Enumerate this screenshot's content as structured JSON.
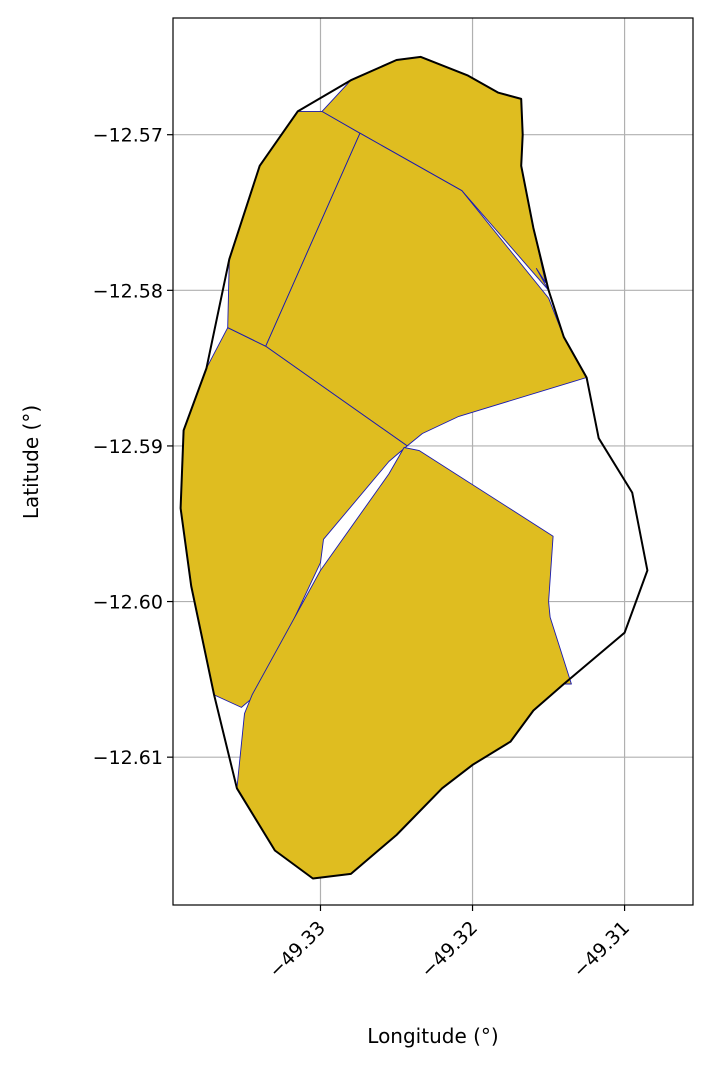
{
  "chart_data": {
    "type": "map",
    "title": "",
    "xlabel": "Longitude (°)",
    "ylabel": "Latitude (°)",
    "xlim": [
      -49.3397,
      -49.3055
    ],
    "ylim": [
      -12.6195,
      -12.5625
    ],
    "grid": true,
    "x_ticks": [
      {
        "value": -49.33,
        "label": "−49.33"
      },
      {
        "value": -49.32,
        "label": "−49.32"
      },
      {
        "value": -49.31,
        "label": "−49.31"
      }
    ],
    "y_ticks": [
      {
        "value": -12.57,
        "label": "−12.57"
      },
      {
        "value": -12.58,
        "label": "−12.58"
      },
      {
        "value": -12.59,
        "label": "−12.59"
      },
      {
        "value": -12.6,
        "label": "−12.60"
      },
      {
        "value": -12.61,
        "label": "−12.61"
      }
    ],
    "colors": {
      "parcel_fill": "#DFBD20",
      "parcel_edge": "#1A1AB0",
      "outline": "#000000",
      "grid": "#B0B0B0"
    },
    "outline": [
      [
        -49.3234,
        -12.565
      ],
      [
        -49.3203,
        -12.5662
      ],
      [
        -49.3183,
        -12.5673
      ],
      [
        -49.3168,
        -12.5677
      ],
      [
        -49.3167,
        -12.57
      ],
      [
        -49.3168,
        -12.572
      ],
      [
        -49.316,
        -12.576
      ],
      [
        -49.315,
        -12.58
      ],
      [
        -49.314,
        -12.583
      ],
      [
        -49.3125,
        -12.5856
      ],
      [
        -49.3117,
        -12.5895
      ],
      [
        -49.3095,
        -12.593
      ],
      [
        -49.3085,
        -12.598
      ],
      [
        -49.31,
        -12.602
      ],
      [
        -49.314,
        -12.6053
      ],
      [
        -49.316,
        -12.607
      ],
      [
        -49.3175,
        -12.609
      ],
      [
        -49.32,
        -12.6105
      ],
      [
        -49.322,
        -12.612
      ],
      [
        -49.325,
        -12.615
      ],
      [
        -49.328,
        -12.6175
      ],
      [
        -49.3305,
        -12.6178
      ],
      [
        -49.333,
        -12.616
      ],
      [
        -49.3355,
        -12.612
      ],
      [
        -49.337,
        -12.606
      ],
      [
        -49.3385,
        -12.599
      ],
      [
        -49.3392,
        -12.594
      ],
      [
        -49.339,
        -12.589
      ],
      [
        -49.3375,
        -12.585
      ],
      [
        -49.336,
        -12.578
      ],
      [
        -49.334,
        -12.572
      ],
      [
        -49.3315,
        -12.5685
      ],
      [
        -49.328,
        -12.5665
      ],
      [
        -49.325,
        -12.5652
      ]
    ],
    "parcels": [
      {
        "points": [
          [
            -49.3299,
            -12.5685
          ],
          [
            -49.3274,
            -12.5699
          ],
          [
            -49.3336,
            -12.5836
          ],
          [
            -49.3361,
            -12.5824
          ],
          [
            -49.336,
            -12.578
          ],
          [
            -49.334,
            -12.572
          ],
          [
            -49.3315,
            -12.5685
          ]
        ]
      },
      {
        "points": [
          [
            -49.3299,
            -12.5685
          ],
          [
            -49.328,
            -12.5665
          ],
          [
            -49.325,
            -12.5652
          ],
          [
            -49.3234,
            -12.565
          ],
          [
            -49.3203,
            -12.5662
          ],
          [
            -49.3183,
            -12.5673
          ],
          [
            -49.3168,
            -12.5677
          ],
          [
            -49.3167,
            -12.57
          ],
          [
            -49.3168,
            -12.572
          ],
          [
            -49.316,
            -12.576
          ],
          [
            -49.3152,
            -12.5795
          ],
          [
            -49.3158,
            -12.5786
          ],
          [
            -49.315,
            -12.58
          ],
          [
            -49.3207,
            -12.5736
          ],
          [
            -49.3274,
            -12.5699
          ]
        ]
      },
      {
        "points": [
          [
            -49.3274,
            -12.5699
          ],
          [
            -49.3207,
            -12.5736
          ],
          [
            -49.315,
            -12.5805
          ],
          [
            -49.314,
            -12.583
          ],
          [
            -49.3125,
            -12.5856
          ],
          [
            -49.3209,
            -12.5881
          ],
          [
            -49.3233,
            -12.5892
          ],
          [
            -49.3243,
            -12.59
          ],
          [
            -49.3336,
            -12.5836
          ]
        ]
      },
      {
        "points": [
          [
            -49.3361,
            -12.5824
          ],
          [
            -49.3336,
            -12.5836
          ],
          [
            -49.3243,
            -12.59
          ],
          [
            -49.3255,
            -12.591
          ],
          [
            -49.3298,
            -12.596
          ],
          [
            -49.33,
            -12.5975
          ],
          [
            -49.334,
            -12.6058
          ],
          [
            -49.3352,
            -12.6068
          ],
          [
            -49.337,
            -12.606
          ],
          [
            -49.3385,
            -12.599
          ],
          [
            -49.3392,
            -12.594
          ],
          [
            -49.339,
            -12.589
          ],
          [
            -49.3375,
            -12.585
          ]
        ]
      },
      {
        "points": [
          [
            -49.3245,
            -12.5901
          ],
          [
            -49.3255,
            -12.5918
          ],
          [
            -49.33,
            -12.598
          ],
          [
            -49.3345,
            -12.606
          ],
          [
            -49.335,
            -12.6072
          ],
          [
            -49.3355,
            -12.612
          ],
          [
            -49.333,
            -12.616
          ],
          [
            -49.3305,
            -12.6178
          ],
          [
            -49.328,
            -12.6175
          ],
          [
            -49.325,
            -12.615
          ],
          [
            -49.322,
            -12.612
          ],
          [
            -49.32,
            -12.6105
          ],
          [
            -49.3175,
            -12.609
          ],
          [
            -49.316,
            -12.607
          ],
          [
            -49.314,
            -12.6053
          ],
          [
            -49.3135,
            -12.6053
          ],
          [
            -49.3149,
            -12.601
          ],
          [
            -49.315,
            -12.6
          ],
          [
            -49.3147,
            -12.5958
          ],
          [
            -49.3235,
            -12.5903
          ]
        ]
      }
    ]
  }
}
